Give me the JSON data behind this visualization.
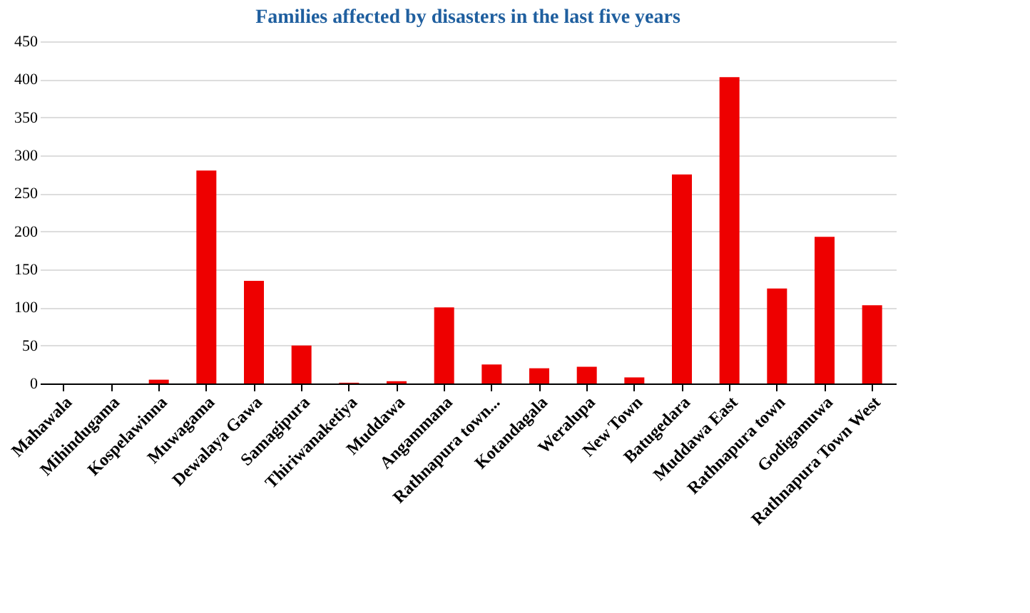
{
  "chart_data": {
    "type": "bar",
    "title": "Families affected  by disasters  in the last five years",
    "categories": [
      "Mahawala",
      "Mihindugama",
      "Kospelawinna",
      "Muwagama",
      "Dewalaya Gawa",
      "Samagipura",
      "Thiriwanaketiya",
      "Muddawa",
      "Angammana",
      "Rathnapura town...",
      "Kotandagala",
      "Weralupa",
      "New Town",
      "Batugedara",
      "Muddawa East",
      "Rathnapura town",
      "Godigamuwa",
      "Rathnapura Town West"
    ],
    "values": [
      0,
      0,
      5,
      280,
      135,
      50,
      1,
      3,
      100,
      25,
      20,
      22,
      8,
      275,
      403,
      125,
      193,
      103
    ],
    "color": "#ee0000",
    "ylim": [
      0,
      450
    ],
    "yticks": [
      0,
      50,
      100,
      150,
      200,
      250,
      300,
      350,
      400,
      450
    ],
    "grid": "y"
  }
}
